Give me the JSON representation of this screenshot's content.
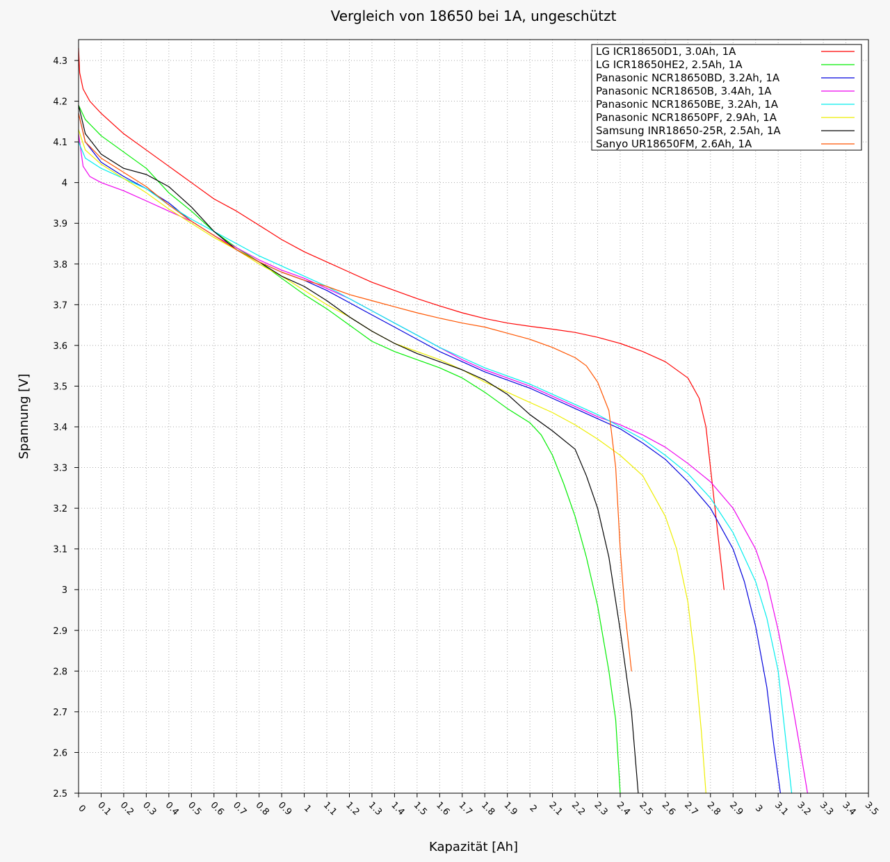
{
  "chart_data": {
    "type": "line",
    "title": "Vergleich von 18650 bei 1A, ungeschützt",
    "xlabel": "Kapazität [Ah]",
    "ylabel": "Spannung [V]",
    "xlim": [
      0,
      3.5
    ],
    "ylim": [
      2.5,
      4.35
    ],
    "grid": true,
    "legend_position": "top-right",
    "x_ticks": [
      "0",
      "0.1",
      "0.2",
      "0.3",
      "0.4",
      "0.5",
      "0.6",
      "0.7",
      "0.8",
      "0.9",
      "1",
      "1.1",
      "1.2",
      "1.3",
      "1.4",
      "1.5",
      "1.6",
      "1.7",
      "1.8",
      "1.9",
      "2",
      "2.1",
      "2.2",
      "2.3",
      "2.4",
      "2.5",
      "2.6",
      "2.7",
      "2.8",
      "2.9",
      "3",
      "3.1",
      "3.2",
      "3.3",
      "3.4",
      "3.5"
    ],
    "y_ticks": [
      "2.5",
      "2.6",
      "2.7",
      "2.8",
      "2.9",
      "3",
      "3.1",
      "3.2",
      "3.3",
      "3.4",
      "3.5",
      "3.6",
      "3.7",
      "3.8",
      "3.9",
      "4",
      "4.1",
      "4.2",
      "4.3"
    ],
    "series": [
      {
        "name": "LG ICR18650D1, 3.0Ah, 1A",
        "color": "#ff0000",
        "points": [
          [
            0,
            4.33
          ],
          [
            0.005,
            4.27
          ],
          [
            0.02,
            4.23
          ],
          [
            0.05,
            4.2
          ],
          [
            0.1,
            4.17
          ],
          [
            0.2,
            4.12
          ],
          [
            0.3,
            4.08
          ],
          [
            0.4,
            4.04
          ],
          [
            0.5,
            4.0
          ],
          [
            0.6,
            3.96
          ],
          [
            0.7,
            3.93
          ],
          [
            0.8,
            3.895
          ],
          [
            0.9,
            3.86
          ],
          [
            1.0,
            3.83
          ],
          [
            1.1,
            3.805
          ],
          [
            1.2,
            3.78
          ],
          [
            1.3,
            3.755
          ],
          [
            1.4,
            3.735
          ],
          [
            1.5,
            3.715
          ],
          [
            1.6,
            3.697
          ],
          [
            1.7,
            3.68
          ],
          [
            1.8,
            3.666
          ],
          [
            1.9,
            3.655
          ],
          [
            2.0,
            3.647
          ],
          [
            2.1,
            3.64
          ],
          [
            2.2,
            3.632
          ],
          [
            2.3,
            3.62
          ],
          [
            2.4,
            3.605
          ],
          [
            2.5,
            3.585
          ],
          [
            2.6,
            3.56
          ],
          [
            2.7,
            3.52
          ],
          [
            2.75,
            3.47
          ],
          [
            2.78,
            3.4
          ],
          [
            2.8,
            3.3
          ],
          [
            2.82,
            3.2
          ],
          [
            2.84,
            3.1
          ],
          [
            2.86,
            3.0
          ]
        ]
      },
      {
        "name": "LG ICR18650HE2, 2.5Ah, 1A",
        "color": "#00ee00",
        "points": [
          [
            0,
            4.19
          ],
          [
            0.03,
            4.155
          ],
          [
            0.1,
            4.115
          ],
          [
            0.2,
            4.075
          ],
          [
            0.3,
            4.035
          ],
          [
            0.4,
            3.975
          ],
          [
            0.5,
            3.93
          ],
          [
            0.6,
            3.88
          ],
          [
            0.7,
            3.84
          ],
          [
            0.8,
            3.805
          ],
          [
            0.9,
            3.765
          ],
          [
            1.0,
            3.725
          ],
          [
            1.1,
            3.69
          ],
          [
            1.2,
            3.65
          ],
          [
            1.3,
            3.61
          ],
          [
            1.4,
            3.585
          ],
          [
            1.5,
            3.565
          ],
          [
            1.6,
            3.545
          ],
          [
            1.7,
            3.52
          ],
          [
            1.8,
            3.485
          ],
          [
            1.9,
            3.445
          ],
          [
            2.0,
            3.41
          ],
          [
            2.05,
            3.38
          ],
          [
            2.1,
            3.33
          ],
          [
            2.15,
            3.26
          ],
          [
            2.2,
            3.18
          ],
          [
            2.25,
            3.08
          ],
          [
            2.3,
            2.96
          ],
          [
            2.35,
            2.8
          ],
          [
            2.38,
            2.68
          ],
          [
            2.4,
            2.5
          ]
        ]
      },
      {
        "name": "Panasonic NCR18650BD, 3.2Ah, 1A",
        "color": "#0000dd",
        "points": [
          [
            0,
            4.17
          ],
          [
            0.03,
            4.1
          ],
          [
            0.1,
            4.05
          ],
          [
            0.2,
            4.015
          ],
          [
            0.3,
            3.985
          ],
          [
            0.4,
            3.95
          ],
          [
            0.5,
            3.905
          ],
          [
            0.6,
            3.87
          ],
          [
            0.7,
            3.835
          ],
          [
            0.8,
            3.805
          ],
          [
            0.9,
            3.78
          ],
          [
            1.0,
            3.76
          ],
          [
            1.1,
            3.735
          ],
          [
            1.2,
            3.705
          ],
          [
            1.3,
            3.675
          ],
          [
            1.4,
            3.645
          ],
          [
            1.5,
            3.615
          ],
          [
            1.6,
            3.585
          ],
          [
            1.7,
            3.56
          ],
          [
            1.8,
            3.535
          ],
          [
            1.9,
            3.515
          ],
          [
            2.0,
            3.495
          ],
          [
            2.1,
            3.47
          ],
          [
            2.2,
            3.445
          ],
          [
            2.3,
            3.42
          ],
          [
            2.4,
            3.395
          ],
          [
            2.5,
            3.36
          ],
          [
            2.6,
            3.32
          ],
          [
            2.7,
            3.265
          ],
          [
            2.8,
            3.2
          ],
          [
            2.9,
            3.1
          ],
          [
            2.95,
            3.02
          ],
          [
            3.0,
            2.91
          ],
          [
            3.05,
            2.76
          ],
          [
            3.08,
            2.62
          ],
          [
            3.11,
            2.5
          ]
        ]
      },
      {
        "name": "Panasonic NCR18650B, 3.4Ah, 1A",
        "color": "#ee00ee",
        "points": [
          [
            0,
            4.12
          ],
          [
            0.02,
            4.04
          ],
          [
            0.05,
            4.015
          ],
          [
            0.1,
            4.0
          ],
          [
            0.2,
            3.98
          ],
          [
            0.3,
            3.955
          ],
          [
            0.4,
            3.93
          ],
          [
            0.5,
            3.905
          ],
          [
            0.6,
            3.87
          ],
          [
            0.7,
            3.84
          ],
          [
            0.8,
            3.81
          ],
          [
            0.9,
            3.785
          ],
          [
            1.0,
            3.765
          ],
          [
            1.1,
            3.74
          ],
          [
            1.2,
            3.715
          ],
          [
            1.3,
            3.685
          ],
          [
            1.4,
            3.655
          ],
          [
            1.5,
            3.625
          ],
          [
            1.6,
            3.595
          ],
          [
            1.7,
            3.565
          ],
          [
            1.8,
            3.54
          ],
          [
            1.9,
            3.52
          ],
          [
            2.0,
            3.5
          ],
          [
            2.1,
            3.475
          ],
          [
            2.2,
            3.45
          ],
          [
            2.3,
            3.425
          ],
          [
            2.4,
            3.405
          ],
          [
            2.5,
            3.38
          ],
          [
            2.6,
            3.35
          ],
          [
            2.7,
            3.31
          ],
          [
            2.8,
            3.265
          ],
          [
            2.9,
            3.2
          ],
          [
            3.0,
            3.1
          ],
          [
            3.05,
            3.02
          ],
          [
            3.1,
            2.9
          ],
          [
            3.15,
            2.76
          ],
          [
            3.2,
            2.6
          ],
          [
            3.23,
            2.5
          ]
        ]
      },
      {
        "name": "Panasonic NCR18650BE, 3.2Ah, 1A",
        "color": "#00eeee",
        "points": [
          [
            0,
            4.1
          ],
          [
            0.03,
            4.06
          ],
          [
            0.1,
            4.035
          ],
          [
            0.2,
            4.01
          ],
          [
            0.3,
            3.985
          ],
          [
            0.4,
            3.945
          ],
          [
            0.5,
            3.91
          ],
          [
            0.6,
            3.88
          ],
          [
            0.7,
            3.85
          ],
          [
            0.8,
            3.82
          ],
          [
            0.9,
            3.795
          ],
          [
            1.0,
            3.77
          ],
          [
            1.1,
            3.745
          ],
          [
            1.2,
            3.715
          ],
          [
            1.3,
            3.685
          ],
          [
            1.4,
            3.655
          ],
          [
            1.5,
            3.625
          ],
          [
            1.6,
            3.595
          ],
          [
            1.7,
            3.57
          ],
          [
            1.8,
            3.545
          ],
          [
            1.9,
            3.525
          ],
          [
            2.0,
            3.505
          ],
          [
            2.1,
            3.48
          ],
          [
            2.2,
            3.455
          ],
          [
            2.3,
            3.43
          ],
          [
            2.4,
            3.4
          ],
          [
            2.5,
            3.37
          ],
          [
            2.6,
            3.33
          ],
          [
            2.7,
            3.285
          ],
          [
            2.8,
            3.225
          ],
          [
            2.9,
            3.14
          ],
          [
            3.0,
            3.02
          ],
          [
            3.05,
            2.93
          ],
          [
            3.1,
            2.8
          ],
          [
            3.13,
            2.65
          ],
          [
            3.16,
            2.5
          ]
        ]
      },
      {
        "name": "Panasonic NCR18650PF, 2.9Ah, 1A",
        "color": "#eeee00",
        "points": [
          [
            0,
            4.13
          ],
          [
            0.03,
            4.08
          ],
          [
            0.1,
            4.045
          ],
          [
            0.2,
            4.01
          ],
          [
            0.3,
            3.975
          ],
          [
            0.4,
            3.935
          ],
          [
            0.5,
            3.9
          ],
          [
            0.6,
            3.865
          ],
          [
            0.7,
            3.835
          ],
          [
            0.8,
            3.8
          ],
          [
            0.9,
            3.77
          ],
          [
            1.0,
            3.735
          ],
          [
            1.1,
            3.7
          ],
          [
            1.2,
            3.67
          ],
          [
            1.3,
            3.635
          ],
          [
            1.4,
            3.605
          ],
          [
            1.5,
            3.585
          ],
          [
            1.6,
            3.565
          ],
          [
            1.7,
            3.54
          ],
          [
            1.8,
            3.51
          ],
          [
            1.9,
            3.485
          ],
          [
            2.0,
            3.46
          ],
          [
            2.1,
            3.435
          ],
          [
            2.2,
            3.405
          ],
          [
            2.3,
            3.37
          ],
          [
            2.4,
            3.33
          ],
          [
            2.5,
            3.28
          ],
          [
            2.6,
            3.18
          ],
          [
            2.65,
            3.1
          ],
          [
            2.7,
            2.97
          ],
          [
            2.73,
            2.83
          ],
          [
            2.76,
            2.65
          ],
          [
            2.78,
            2.5
          ]
        ]
      },
      {
        "name": "Samsung INR18650-25R, 2.5Ah, 1A",
        "color": "#000000",
        "points": [
          [
            0,
            4.19
          ],
          [
            0.03,
            4.12
          ],
          [
            0.1,
            4.07
          ],
          [
            0.2,
            4.035
          ],
          [
            0.3,
            4.02
          ],
          [
            0.4,
            3.99
          ],
          [
            0.5,
            3.94
          ],
          [
            0.6,
            3.88
          ],
          [
            0.7,
            3.835
          ],
          [
            0.8,
            3.805
          ],
          [
            0.9,
            3.77
          ],
          [
            1.0,
            3.745
          ],
          [
            1.1,
            3.71
          ],
          [
            1.2,
            3.67
          ],
          [
            1.3,
            3.635
          ],
          [
            1.4,
            3.605
          ],
          [
            1.5,
            3.58
          ],
          [
            1.6,
            3.56
          ],
          [
            1.7,
            3.54
          ],
          [
            1.8,
            3.515
          ],
          [
            1.9,
            3.48
          ],
          [
            2.0,
            3.43
          ],
          [
            2.1,
            3.39
          ],
          [
            2.2,
            3.345
          ],
          [
            2.25,
            3.28
          ],
          [
            2.3,
            3.2
          ],
          [
            2.35,
            3.08
          ],
          [
            2.4,
            2.9
          ],
          [
            2.45,
            2.7
          ],
          [
            2.48,
            2.5
          ]
        ]
      },
      {
        "name": "Sanyo UR18650FM, 2.6Ah, 1A",
        "color": "#ff5500",
        "points": [
          [
            0,
            4.17
          ],
          [
            0.03,
            4.1
          ],
          [
            0.1,
            4.06
          ],
          [
            0.2,
            4.025
          ],
          [
            0.3,
            3.99
          ],
          [
            0.4,
            3.945
          ],
          [
            0.5,
            3.905
          ],
          [
            0.6,
            3.87
          ],
          [
            0.7,
            3.835
          ],
          [
            0.8,
            3.805
          ],
          [
            0.9,
            3.78
          ],
          [
            1.0,
            3.76
          ],
          [
            1.1,
            3.745
          ],
          [
            1.2,
            3.725
          ],
          [
            1.3,
            3.71
          ],
          [
            1.4,
            3.695
          ],
          [
            1.5,
            3.68
          ],
          [
            1.6,
            3.667
          ],
          [
            1.7,
            3.655
          ],
          [
            1.8,
            3.645
          ],
          [
            1.9,
            3.63
          ],
          [
            2.0,
            3.615
          ],
          [
            2.1,
            3.595
          ],
          [
            2.2,
            3.57
          ],
          [
            2.25,
            3.55
          ],
          [
            2.3,
            3.51
          ],
          [
            2.35,
            3.44
          ],
          [
            2.38,
            3.3
          ],
          [
            2.4,
            3.1
          ],
          [
            2.42,
            2.95
          ],
          [
            2.45,
            2.8
          ]
        ]
      }
    ]
  }
}
